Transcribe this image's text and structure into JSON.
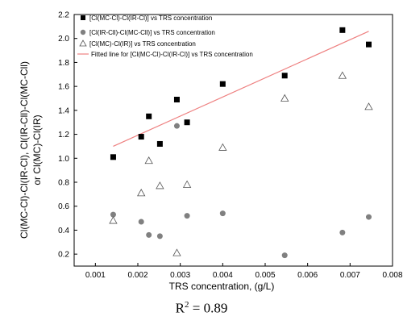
{
  "chart_data": {
    "type": "scatter",
    "xlabel": "TRS concentration, (g/L)",
    "ylabel_lines": [
      "Cl(MC-Cl)-Cl(IR-Cl), Cl(IR-Cll)-Cl(MC-Cll)",
      "or Cl(MC)-Cl(IR)"
    ],
    "xlim": [
      0.0005,
      0.008
    ],
    "ylim": [
      0.1,
      2.2
    ],
    "xticks": [
      "0.001",
      "0.002",
      "0.003",
      "0.004",
      "0.005",
      "0.006",
      "0.007",
      "0.008"
    ],
    "yticks": [
      "0.2",
      "0.4",
      "0.6",
      "0.8",
      "1.0",
      "1.2",
      "1.4",
      "1.6",
      "1.8",
      "2.0",
      "2.2"
    ],
    "legend_position": "top-left",
    "series": [
      {
        "name": "[Cl(MC-Cl)-Cl(IR-Cl)] vs TRS concentration",
        "marker": "square",
        "color": "#000000",
        "x": [
          0.00142,
          0.00208,
          0.00226,
          0.00252,
          0.00292,
          0.00316,
          0.004,
          0.00546,
          0.00682,
          0.00744
        ],
        "y": [
          1.01,
          1.18,
          1.35,
          1.12,
          1.49,
          1.3,
          1.62,
          1.69,
          2.07,
          1.95
        ]
      },
      {
        "name": "[Cl(IR-Cll)-Cl(MC-Cll)] vs TRS concentration",
        "marker": "circle",
        "color": "#808080",
        "x": [
          0.00142,
          0.00208,
          0.00226,
          0.00252,
          0.00292,
          0.00316,
          0.004,
          0.00546,
          0.00682,
          0.00744
        ],
        "y": [
          0.53,
          0.47,
          0.36,
          0.35,
          1.27,
          0.52,
          0.54,
          0.19,
          0.38,
          0.51
        ]
      },
      {
        "name": "[Cl(MC)-Cl(IR)] vs TRS concentration",
        "marker": "triangle",
        "color": "#555555",
        "x": [
          0.00142,
          0.00208,
          0.00226,
          0.00252,
          0.00292,
          0.00316,
          0.004,
          0.00546,
          0.00682,
          0.00744
        ],
        "y": [
          0.48,
          0.71,
          0.98,
          0.77,
          0.21,
          0.78,
          1.09,
          1.5,
          1.69,
          1.43
        ]
      }
    ],
    "fit_line": {
      "name": "Fitted line for [Cl(MC-Cl)-Cl(IR-Cl)] vs TRS concentration",
      "color": "#ee8080",
      "x": [
        0.00142,
        0.00744
      ],
      "y": [
        1.1,
        2.06
      ]
    }
  },
  "caption": {
    "prefix": "R",
    "sup": "2",
    "suffix": " = 0.89"
  }
}
